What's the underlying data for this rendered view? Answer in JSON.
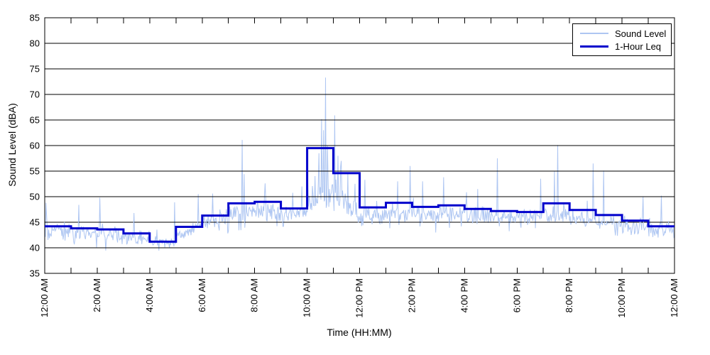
{
  "figure": {
    "background": "#FFFFFF"
  },
  "chart_data": {
    "type": "line",
    "title": "",
    "xlabel": "Time (HH:MM)",
    "ylabel": "Sound Level (dBA)",
    "xlim_hours": [
      0,
      24
    ],
    "ylim": [
      35,
      85
    ],
    "yticks": [
      35,
      40,
      45,
      50,
      55,
      60,
      65,
      70,
      75,
      80,
      85
    ],
    "x_tick_labels": [
      "12:00 AM",
      "2:00 AM",
      "4:00 AM",
      "6:00 AM",
      "8:00 AM",
      "10:00 AM",
      "12:00 PM",
      "2:00 PM",
      "4:00 PM",
      "6:00 PM",
      "8:00 PM",
      "10:00 PM",
      "12:00 AM"
    ],
    "x_minor_tick_every_hours": 1,
    "x_label_every_hours": 2,
    "grid": "horizontal-solid-black",
    "threshold_line": {
      "value": 45,
      "style": "dash-dot",
      "color": "#000000"
    },
    "legend_position": "top-right",
    "series": [
      {
        "name": "Sound Level",
        "type": "noisy-line",
        "color": "#AEC6F2",
        "stroke_width": 1,
        "noise_model": {
          "seed": 20107,
          "points": 960,
          "hours_format": [
            "base_start_dBA",
            "base_end_dBA",
            "spread_dBA",
            "spike_rate",
            "spike_scale_dBA"
          ],
          "hours": [
            [
              43.3,
              43.2,
              1.6,
              0.1,
              5.0
            ],
            [
              43.0,
              42.9,
              1.5,
              0.09,
              4.5
            ],
            [
              42.8,
              42.6,
              1.5,
              0.08,
              4.5
            ],
            [
              42.2,
              41.7,
              1.3,
              0.06,
              4.0
            ],
            [
              41.0,
              41.0,
              0.9,
              0.05,
              3.0
            ],
            [
              41.8,
              44.8,
              1.2,
              0.08,
              4.5
            ],
            [
              45.2,
              45.6,
              1.5,
              0.1,
              4.5
            ],
            [
              46.6,
              47.0,
              1.7,
              0.12,
              5.0
            ],
            [
              47.2,
              47.1,
              1.7,
              0.12,
              4.5
            ],
            [
              46.4,
              46.8,
              1.6,
              0.1,
              4.5
            ],
            [
              48.0,
              50.5,
              2.8,
              0.18,
              9.0
            ],
            [
              49.8,
              46.8,
              2.3,
              0.15,
              7.0
            ],
            [
              46.2,
              46.5,
              1.7,
              0.1,
              5.0
            ],
            [
              46.9,
              46.8,
              1.7,
              0.11,
              5.0
            ],
            [
              46.6,
              46.7,
              1.7,
              0.1,
              5.0
            ],
            [
              46.8,
              46.5,
              1.6,
              0.1,
              5.0
            ],
            [
              46.3,
              46.1,
              1.6,
              0.1,
              4.5
            ],
            [
              46.0,
              46.0,
              1.6,
              0.1,
              5.0
            ],
            [
              46.0,
              46.3,
              1.5,
              0.1,
              4.5
            ],
            [
              46.6,
              46.4,
              1.8,
              0.12,
              5.5
            ],
            [
              45.9,
              45.6,
              1.6,
              0.1,
              5.0
            ],
            [
              45.1,
              44.8,
              1.5,
              0.09,
              4.5
            ],
            [
              44.3,
              44.0,
              1.4,
              0.08,
              4.5
            ],
            [
              43.3,
              43.5,
              1.4,
              0.08,
              4.0
            ]
          ],
          "notable_spikes": [
            {
              "t": 0.05,
              "v": 48.8
            },
            {
              "t": 1.3,
              "v": 48.4
            },
            {
              "t": 2.1,
              "v": 49.8
            },
            {
              "t": 3.4,
              "v": 46.8
            },
            {
              "t": 4.95,
              "v": 48.9
            },
            {
              "t": 5.85,
              "v": 50.5
            },
            {
              "t": 6.4,
              "v": 50.6
            },
            {
              "t": 7.52,
              "v": 61.1
            },
            {
              "t": 7.6,
              "v": 54.4
            },
            {
              "t": 8.4,
              "v": 52.6
            },
            {
              "t": 9.8,
              "v": 52.0
            },
            {
              "t": 10.45,
              "v": 58.5
            },
            {
              "t": 10.55,
              "v": 65.2
            },
            {
              "t": 10.63,
              "v": 63.0
            },
            {
              "t": 10.7,
              "v": 73.3
            },
            {
              "t": 10.78,
              "v": 60.0
            },
            {
              "t": 11.05,
              "v": 65.9
            },
            {
              "t": 11.18,
              "v": 58.0
            },
            {
              "t": 11.3,
              "v": 57.0
            },
            {
              "t": 12.2,
              "v": 53.3
            },
            {
              "t": 13.45,
              "v": 53.0
            },
            {
              "t": 13.93,
              "v": 56.0
            },
            {
              "t": 14.4,
              "v": 53.0
            },
            {
              "t": 15.2,
              "v": 53.8
            },
            {
              "t": 16.5,
              "v": 51.5
            },
            {
              "t": 17.25,
              "v": 57.5
            },
            {
              "t": 18.9,
              "v": 53.5
            },
            {
              "t": 19.42,
              "v": 55.0
            },
            {
              "t": 19.55,
              "v": 60.1
            },
            {
              "t": 20.9,
              "v": 56.5
            },
            {
              "t": 21.3,
              "v": 55.1
            },
            {
              "t": 22.8,
              "v": 50.0
            },
            {
              "t": 23.5,
              "v": 50.2
            }
          ]
        }
      },
      {
        "name": "1-Hour Leq",
        "type": "step",
        "color": "#0000CC",
        "stroke_width": 3,
        "hourly_leq_dBA": [
          44.2,
          43.8,
          43.6,
          42.8,
          41.2,
          44.1,
          46.3,
          48.7,
          49.0,
          47.7,
          59.5,
          54.6,
          47.9,
          48.8,
          48.0,
          48.3,
          47.6,
          47.2,
          47.0,
          48.7,
          47.4,
          46.4,
          45.3,
          44.2
        ]
      }
    ]
  }
}
